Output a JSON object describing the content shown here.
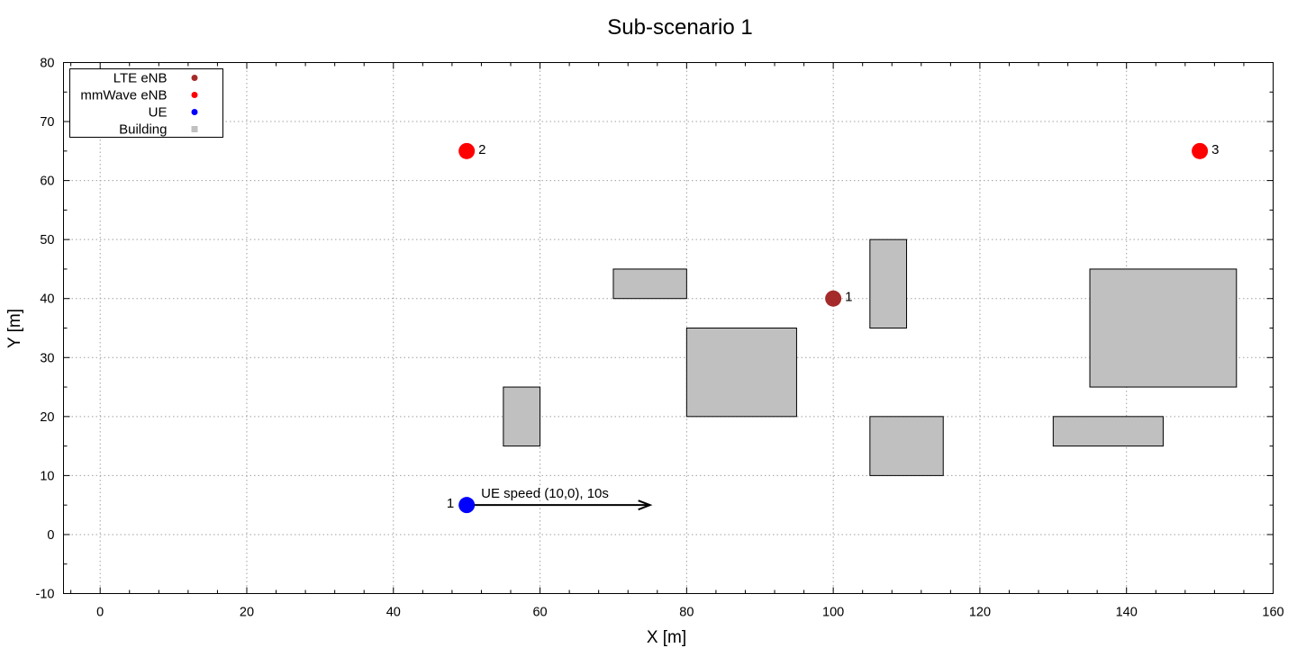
{
  "chart_data": {
    "type": "scatter",
    "title": "Sub-scenario  1",
    "xlabel": "X [m]",
    "ylabel": "Y [m]",
    "xlim": [
      -5,
      160
    ],
    "ylim": [
      -10,
      80
    ],
    "x_ticks": [
      0,
      20,
      40,
      60,
      80,
      100,
      120,
      140,
      160
    ],
    "y_ticks": [
      -10,
      0,
      10,
      20,
      30,
      40,
      50,
      60,
      70,
      80
    ],
    "grid": true,
    "legend_position": "top-left",
    "legend": [
      {
        "label": "LTE eNB",
        "color": "#a52a2a",
        "marker": "circle"
      },
      {
        "label": "mmWave eNB",
        "color": "#ff0000",
        "marker": "circle"
      },
      {
        "label": "UE",
        "color": "#0000ff",
        "marker": "circle"
      },
      {
        "label": "Building",
        "color": "#c0c0c0",
        "marker": "square"
      }
    ],
    "lte_enbs": [
      {
        "id": "1",
        "x": 100,
        "y": 40
      }
    ],
    "mmwave_enbs": [
      {
        "id": "2",
        "x": 50,
        "y": 65
      },
      {
        "id": "3",
        "x": 150,
        "y": 65
      }
    ],
    "ues": [
      {
        "id": "1",
        "x": 50,
        "y": 5
      }
    ],
    "buildings": [
      {
        "x0": 55,
        "x1": 60,
        "y0": 15,
        "y1": 25
      },
      {
        "x0": 70,
        "x1": 80,
        "y0": 40,
        "y1": 45
      },
      {
        "x0": 80,
        "x1": 95,
        "y0": 20,
        "y1": 35
      },
      {
        "x0": 105,
        "x1": 110,
        "y0": 35,
        "y1": 50
      },
      {
        "x0": 105,
        "x1": 115,
        "y0": 10,
        "y1": 20
      },
      {
        "x0": 130,
        "x1": 145,
        "y0": 15,
        "y1": 20
      },
      {
        "x0": 135,
        "x1": 155,
        "y0": 25,
        "y1": 45
      }
    ],
    "ue_motion": {
      "label": "UE speed (10,0), 10s",
      "from": [
        50,
        5
      ],
      "to": [
        75,
        5
      ]
    }
  }
}
